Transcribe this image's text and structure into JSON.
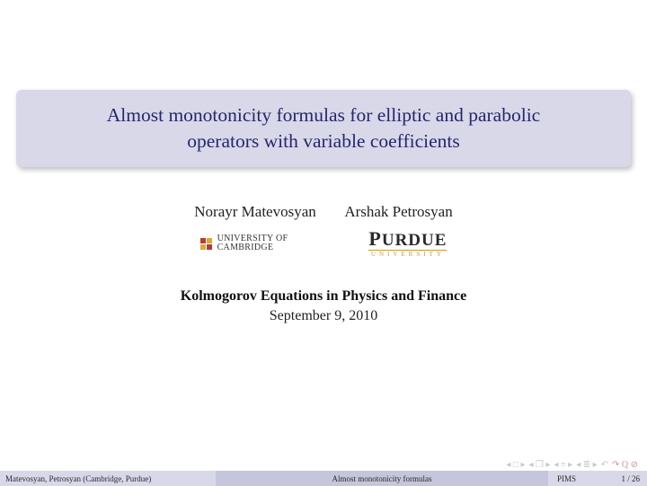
{
  "colors": {
    "title_box_bg": "#d8d8e8",
    "title_text": "#26266e",
    "footer_bg": "#d8d8e8",
    "footer_mid_bg": "#c5c5db",
    "purdue_gold": "#c99a2e",
    "cambridge_red": "#b73a3a",
    "cambridge_yellow": "#d9a93a",
    "nav_icon_gray": "#c8c8c8"
  },
  "title": {
    "line1": "Almost monotonicity formulas for elliptic and parabolic",
    "line2": "operators with variable coefficients"
  },
  "authors": {
    "author1": "Norayr Matevosyan",
    "author2": "Arshak Petrosyan"
  },
  "logos": {
    "cambridge_line1": "UNIVERSITY OF",
    "cambridge_line2": "CAMBRIDGE",
    "purdue_name": "URDUE",
    "purdue_initial": "P",
    "purdue_sub": "UNIVERSITY"
  },
  "conference": "Kolmogorov Equations in Physics and Finance",
  "date": "September 9, 2010",
  "footer": {
    "authors": "Matevosyan, Petrosyan  (Cambridge, Purdue)",
    "short_title": "Almost monotonicity formulas",
    "venue": "PIMS",
    "page": "1 / 26"
  },
  "nav": {
    "first": "◂ □ ▸",
    "prev": "◂ ❐ ▸",
    "next": "◂ ≡ ▸",
    "section": "◂ ≣ ▸",
    "back": "↶",
    "redo": "↷ Q ⊘"
  }
}
